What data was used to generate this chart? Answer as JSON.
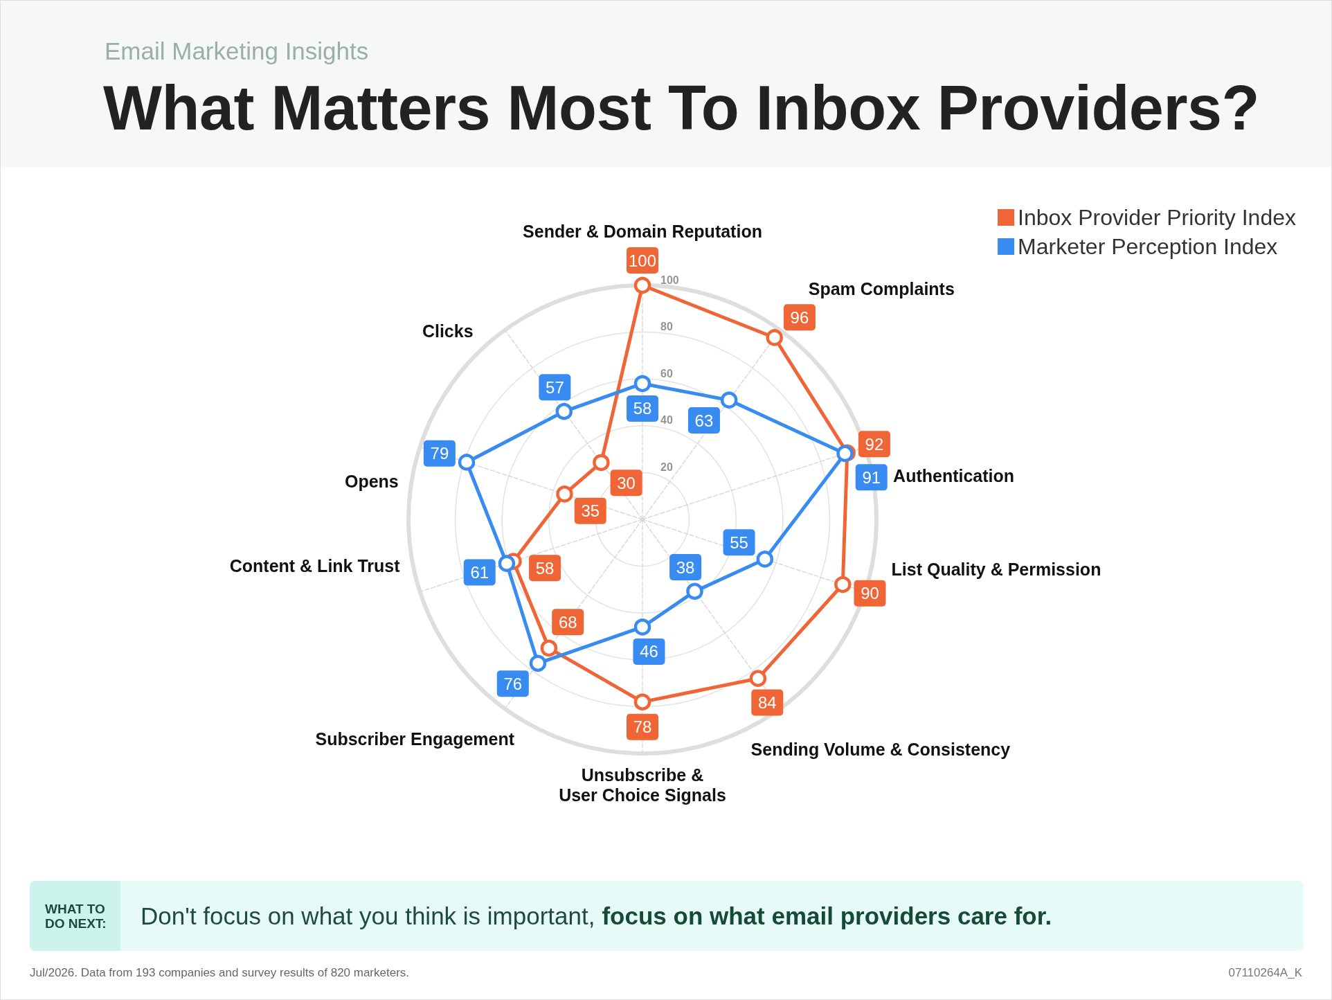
{
  "chart_data": {
    "type": "radar",
    "title": "What Matters Most To Inbox Providers?",
    "subtitle": "Email Marketing Insights",
    "categories": [
      "Sender & Domain Reputation",
      "Spam Complaints",
      "Authentication",
      "List Quality & Permission",
      "Sending Volume & Consistency",
      "Unsubscribe & User Choice Signals",
      "Subscriber Engagement",
      "Content & Link Trust",
      "Opens",
      "Clicks"
    ],
    "series": [
      {
        "name": "Inbox Provider Priority Index",
        "color": "#f06535",
        "values": [
          100,
          96,
          92,
          90,
          84,
          78,
          68,
          58,
          35,
          30
        ]
      },
      {
        "name": "Marketer Perception Index",
        "color": "#388bf0",
        "values": [
          58,
          63,
          91,
          55,
          38,
          46,
          76,
          61,
          79,
          57
        ]
      }
    ],
    "ylim": [
      0,
      100
    ],
    "yticks": [
      20,
      40,
      60,
      80,
      100
    ],
    "grid": true,
    "legend": "top right",
    "marker": "circle",
    "data_labels": true,
    "annotations": [
      "WHAT TO DO NEXT:",
      "Don't focus on what you think is important,",
      "focus on what email providers care for.",
      "Jul/2026. Data from 193 companies and survey results of 820 marketers.",
      "07110264A_K"
    ]
  }
}
